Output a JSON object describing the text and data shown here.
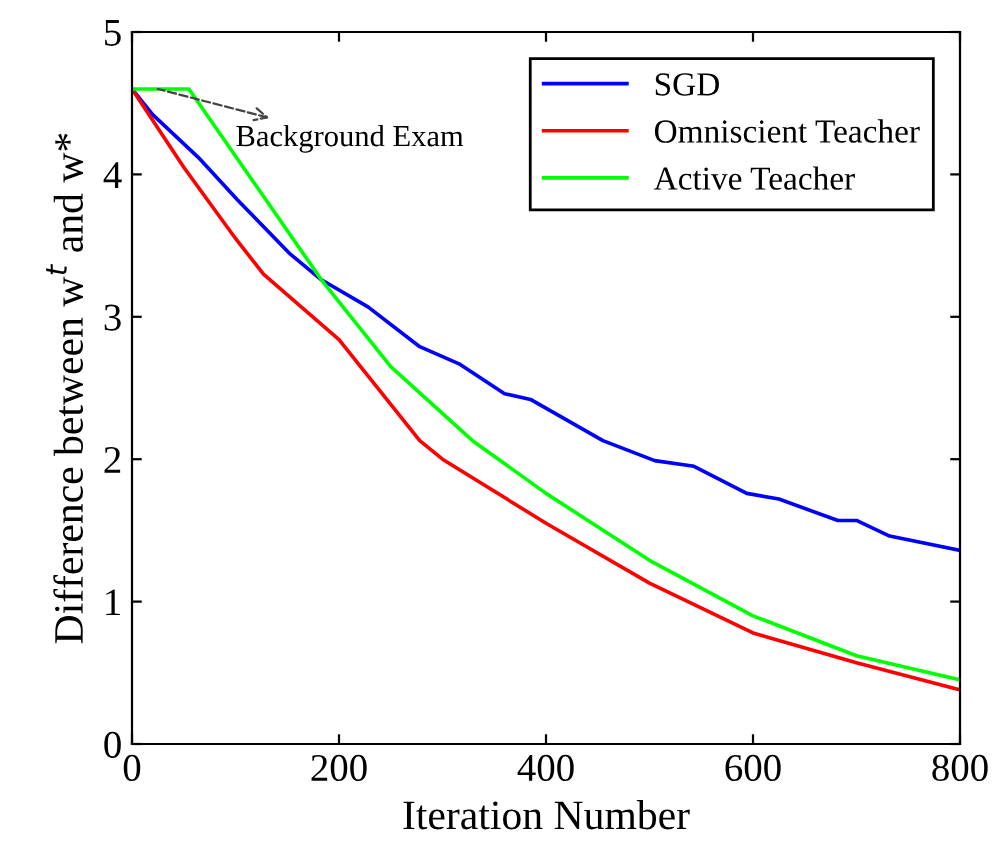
{
  "chart_data": {
    "type": "line",
    "xlabel": "Iteration Number",
    "ylabel": "Difference between w$^{t}$ and w*",
    "xlim": [
      0,
      800
    ],
    "ylim": [
      0,
      5
    ],
    "xticks": [
      0,
      200,
      400,
      600,
      800
    ],
    "yticks": [
      0,
      1,
      2,
      3,
      4,
      5
    ],
    "grid": false,
    "legend": "top right",
    "marker": "none",
    "line_style": "solid",
    "annotations": [
      {
        "text": "Background Exam",
        "x": 25,
        "y": 4.6
      }
    ],
    "series": [
      {
        "name": "SGD",
        "color": "#0000ff",
        "x": [
          0,
          20,
          64,
          102,
          153,
          183,
          228,
          278,
          316,
          360,
          385,
          455,
          505,
          543,
          594,
          625,
          682,
          700,
          732,
          800
        ],
        "values": [
          4.6,
          4.42,
          4.12,
          3.82,
          3.44,
          3.26,
          3.07,
          2.79,
          2.67,
          2.46,
          2.42,
          2.13,
          1.99,
          1.95,
          1.76,
          1.72,
          1.57,
          1.57,
          1.46,
          1.36
        ]
      },
      {
        "name": "Omniscient Teacher",
        "color": "#ff0000",
        "x": [
          0,
          50,
          100,
          127,
          200,
          278,
          300,
          400,
          500,
          600,
          700,
          800
        ],
        "values": [
          4.6,
          4.05,
          3.55,
          3.3,
          2.84,
          2.13,
          2.0,
          1.55,
          1.13,
          0.78,
          0.57,
          0.38
        ]
      },
      {
        "name": "Active Teacher",
        "color": "#00ff00",
        "x": [
          0,
          55,
          183,
          250,
          329,
          400,
          500,
          600,
          700,
          800
        ],
        "values": [
          4.6,
          4.6,
          3.26,
          2.65,
          2.13,
          1.76,
          1.29,
          0.9,
          0.62,
          0.45
        ]
      }
    ]
  }
}
